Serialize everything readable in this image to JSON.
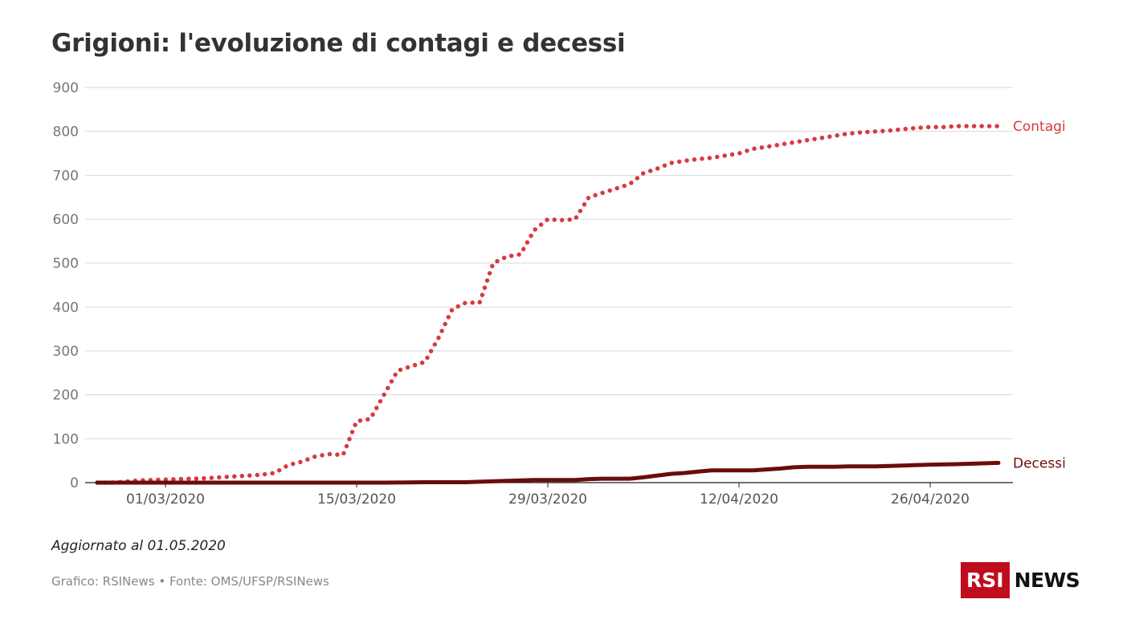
{
  "header": {
    "title": "Grigioni: l'evoluzione di contagi e decessi"
  },
  "footer": {
    "updated": "Aggiornato al 01.05.2020",
    "source": "Grafico: RSINews • Fonte: OMS/UFSP/RSINews"
  },
  "logo": {
    "box_text": "RSI",
    "word": "NEWS",
    "box_color": "#c00d1e"
  },
  "chart_data": {
    "type": "line",
    "title": "Grigioni: l'evoluzione di contagi e decessi",
    "xlabel": "",
    "ylabel": "",
    "ylim": [
      0,
      900
    ],
    "yticks": [
      0,
      100,
      200,
      300,
      400,
      500,
      600,
      700,
      800,
      900
    ],
    "xticks": [
      "01/03/2020",
      "15/03/2020",
      "29/03/2020",
      "12/04/2020",
      "26/04/2020"
    ],
    "x_start": "2020-02-25",
    "x_end": "2020-05-01",
    "grid": true,
    "legend": "direct labels at line ends",
    "series": [
      {
        "name": "Contagi",
        "color": "#d63a3f",
        "style": "dotted",
        "x": [
          "2020-02-25",
          "2020-02-26",
          "2020-02-27",
          "2020-02-28",
          "2020-02-29",
          "2020-03-01",
          "2020-03-02",
          "2020-03-03",
          "2020-03-04",
          "2020-03-05",
          "2020-03-06",
          "2020-03-07",
          "2020-03-08",
          "2020-03-09",
          "2020-03-10",
          "2020-03-11",
          "2020-03-12",
          "2020-03-13",
          "2020-03-14",
          "2020-03-15",
          "2020-03-16",
          "2020-03-17",
          "2020-03-18",
          "2020-03-19",
          "2020-03-20",
          "2020-03-21",
          "2020-03-22",
          "2020-03-23",
          "2020-03-24",
          "2020-03-25",
          "2020-03-26",
          "2020-03-27",
          "2020-03-28",
          "2020-03-29",
          "2020-03-30",
          "2020-03-31",
          "2020-04-01",
          "2020-04-02",
          "2020-04-03",
          "2020-04-04",
          "2020-04-05",
          "2020-04-06",
          "2020-04-07",
          "2020-04-08",
          "2020-04-09",
          "2020-04-10",
          "2020-04-11",
          "2020-04-12",
          "2020-04-13",
          "2020-04-14",
          "2020-04-15",
          "2020-04-16",
          "2020-04-17",
          "2020-04-18",
          "2020-04-19",
          "2020-04-20",
          "2020-04-21",
          "2020-04-22",
          "2020-04-23",
          "2020-04-24",
          "2020-04-25",
          "2020-04-26",
          "2020-04-27",
          "2020-04-28",
          "2020-04-29",
          "2020-04-30",
          "2020-05-01"
        ],
        "values": [
          0,
          0,
          2,
          5,
          6,
          7,
          8,
          9,
          10,
          12,
          14,
          16,
          18,
          22,
          40,
          48,
          60,
          65,
          63,
          140,
          145,
          200,
          255,
          265,
          275,
          330,
          395,
          410,
          410,
          500,
          515,
          520,
          575,
          600,
          598,
          600,
          650,
          660,
          670,
          680,
          705,
          715,
          728,
          733,
          737,
          740,
          745,
          750,
          760,
          765,
          770,
          775,
          780,
          785,
          790,
          795,
          798,
          800,
          802,
          805,
          808,
          810,
          810,
          812,
          812,
          812,
          812
        ]
      },
      {
        "name": "Decessi",
        "color": "#6b0c0c",
        "style": "solid",
        "x": [
          "2020-02-25",
          "2020-03-02",
          "2020-03-08",
          "2020-03-14",
          "2020-03-17",
          "2020-03-20",
          "2020-03-23",
          "2020-03-24",
          "2020-03-27",
          "2020-03-28",
          "2020-03-31",
          "2020-04-01",
          "2020-04-02",
          "2020-04-03",
          "2020-04-04",
          "2020-04-05",
          "2020-04-07",
          "2020-04-08",
          "2020-04-09",
          "2020-04-10",
          "2020-04-13",
          "2020-04-15",
          "2020-04-16",
          "2020-04-17",
          "2020-04-19",
          "2020-04-20",
          "2020-04-22",
          "2020-04-24",
          "2020-04-26",
          "2020-04-28",
          "2020-05-01"
        ],
        "values": [
          0,
          0,
          0,
          0,
          0,
          1,
          1,
          2,
          5,
          6,
          6,
          8,
          9,
          9,
          9,
          12,
          20,
          22,
          25,
          28,
          28,
          32,
          35,
          36,
          36,
          37,
          37,
          39,
          41,
          42,
          45
        ]
      }
    ]
  }
}
